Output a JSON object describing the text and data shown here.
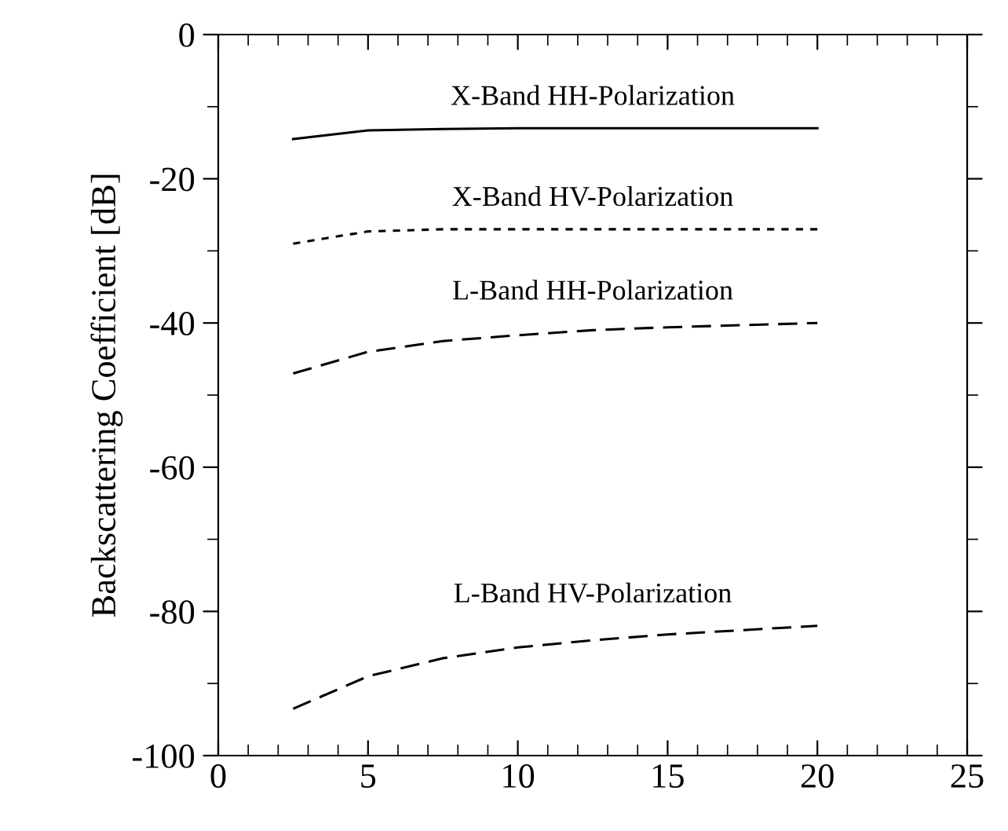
{
  "chart_data": {
    "type": "line",
    "ylabel": "Backscattering Coefficient [dB]",
    "x": [
      2.5,
      5,
      7.5,
      10,
      12.5,
      15,
      17.5,
      20
    ],
    "series": [
      {
        "name": "X-Band HH-Polarization",
        "color": "#000000",
        "line_style": "solid",
        "values": [
          -14.5,
          -13.3,
          -13.1,
          -13,
          -13,
          -13,
          -13,
          -13
        ]
      },
      {
        "name": "X-Band HV-Polarization",
        "color": "#000000",
        "line_style": "dotted",
        "values": [
          -29,
          -27.3,
          -27,
          -27,
          -27,
          -27,
          -27,
          -27
        ]
      },
      {
        "name": "L-Band HH-Polarization",
        "color": "#000000",
        "line_style": "dashed",
        "values": [
          -47,
          -44,
          -42.5,
          -41.7,
          -41,
          -40.6,
          -40.3,
          -40
        ]
      },
      {
        "name": "L-Band HV-Polarization",
        "color": "#000000",
        "line_style": "dashed",
        "values": [
          -93.5,
          -89,
          -86.5,
          -85,
          -84,
          -83.2,
          -82.6,
          -82
        ]
      }
    ],
    "xlim": [
      0,
      25
    ],
    "xticks": [
      0,
      5,
      10,
      15,
      20,
      25
    ],
    "ylim": [
      -100,
      0
    ],
    "yticks": [
      -100,
      -80,
      -60,
      -40,
      -20,
      0
    ],
    "grid": false,
    "marker": "none"
  }
}
